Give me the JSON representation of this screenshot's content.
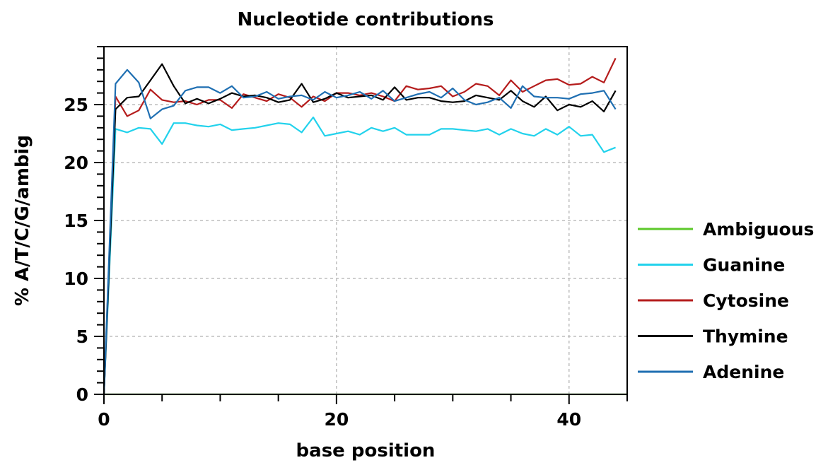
{
  "chart_data": {
    "type": "line",
    "title": "Nucleotide contributions",
    "xlabel": "base position",
    "ylabel": "% A/T/C/G/ambig",
    "xlim": [
      0,
      45
    ],
    "ylim": [
      0,
      30
    ],
    "x_ticks": [
      0,
      20,
      40
    ],
    "y_ticks": [
      0,
      5,
      10,
      15,
      20,
      25
    ],
    "grid": true,
    "legend_position": "right",
    "series": [
      {
        "name": "Ambiguous",
        "color": "#5cc82a",
        "values": [
          0,
          0,
          0,
          0,
          0,
          0,
          0,
          0,
          0,
          0,
          0,
          0,
          0,
          0,
          0,
          0,
          0,
          0,
          0,
          0,
          0,
          0,
          0,
          0,
          0,
          0,
          0,
          0,
          0,
          0,
          0,
          0,
          0,
          0,
          0,
          0,
          0,
          0,
          0,
          0,
          0,
          0,
          0,
          0,
          0,
          0
        ]
      },
      {
        "name": "Guanine",
        "color": "#22d2ec",
        "values": [
          0,
          22.9,
          22.6,
          23.0,
          22.9,
          21.6,
          23.4,
          23.4,
          23.2,
          23.1,
          23.3,
          22.8,
          22.9,
          23.0,
          23.2,
          23.4,
          23.3,
          22.6,
          23.9,
          22.3,
          22.5,
          22.7,
          22.4,
          23.0,
          22.7,
          23.0,
          22.4,
          22.4,
          22.4,
          22.9,
          22.9,
          22.8,
          22.7,
          22.9,
          22.4,
          22.9,
          22.5,
          22.3,
          22.9,
          22.4,
          23.1,
          22.3,
          22.4,
          20.9,
          21.3
        ]
      },
      {
        "name": "Cytosine",
        "color": "#b51c1c",
        "values": [
          0,
          25.7,
          24.0,
          24.5,
          26.3,
          25.4,
          25.2,
          25.3,
          25.0,
          25.4,
          25.4,
          24.7,
          25.9,
          25.6,
          25.3,
          25.9,
          25.6,
          24.8,
          25.7,
          25.3,
          26.0,
          26.0,
          25.8,
          26.0,
          25.7,
          25.3,
          26.6,
          26.3,
          26.4,
          26.6,
          25.7,
          26.1,
          26.8,
          26.6,
          25.8,
          27.1,
          26.1,
          26.6,
          27.1,
          27.2,
          26.7,
          26.8,
          27.4,
          26.9,
          29.0
        ]
      },
      {
        "name": "Thymine",
        "color": "#000000",
        "values": [
          0,
          24.6,
          25.6,
          25.7,
          27.1,
          28.5,
          26.6,
          25.1,
          25.5,
          25.1,
          25.5,
          26.0,
          25.7,
          25.8,
          25.6,
          25.2,
          25.4,
          26.8,
          25.2,
          25.5,
          26.0,
          25.6,
          25.7,
          25.8,
          25.4,
          26.5,
          25.4,
          25.6,
          25.6,
          25.3,
          25.2,
          25.3,
          25.8,
          25.6,
          25.4,
          26.2,
          25.3,
          24.8,
          25.7,
          24.5,
          25.0,
          24.8,
          25.3,
          24.4,
          26.2
        ]
      },
      {
        "name": "Adenine",
        "color": "#1f6fb2",
        "values": [
          0,
          26.8,
          28.0,
          26.9,
          23.8,
          24.6,
          24.9,
          26.2,
          26.5,
          26.5,
          26.0,
          26.6,
          25.6,
          25.7,
          26.1,
          25.5,
          25.7,
          25.8,
          25.4,
          26.1,
          25.6,
          25.8,
          26.1,
          25.5,
          26.2,
          25.3,
          25.6,
          25.9,
          26.1,
          25.6,
          26.4,
          25.4,
          25.0,
          25.2,
          25.6,
          24.7,
          26.6,
          25.7,
          25.6,
          25.6,
          25.5,
          25.9,
          26.0,
          26.2,
          24.6
        ]
      }
    ]
  }
}
